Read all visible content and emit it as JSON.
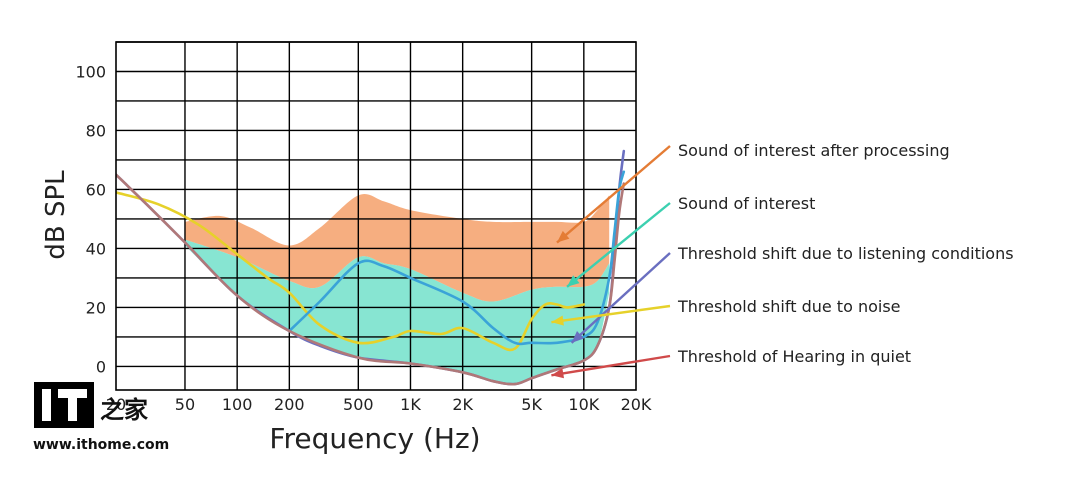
{
  "chart_data": {
    "type": "area",
    "xlabel": "Frequency (Hz)",
    "ylabel": "dB SPL",
    "xscale": "log",
    "xlim": [
      20,
      20000
    ],
    "ylim": [
      -8,
      110
    ],
    "y_ticks": [
      0,
      20,
      40,
      60,
      80,
      100
    ],
    "y_tick_labels": [
      "0",
      "20",
      "40",
      "60",
      "80",
      "100"
    ],
    "x_ticks": [
      20,
      50,
      100,
      200,
      500,
      1000,
      2000,
      5000,
      10000,
      20000
    ],
    "x_tick_labels": [
      "20",
      "50",
      "100",
      "200",
      "500",
      "1K",
      "2K",
      "5K",
      "10K",
      "20K"
    ],
    "grid": true,
    "legend_placement": "right",
    "bands": [
      {
        "name": "Sound of interest after processing",
        "color": "#f4a06a",
        "upper": {
          "x": [
            50,
            80,
            120,
            200,
            300,
            500,
            700,
            1000,
            2000,
            3000,
            5000,
            7000,
            10000,
            12000,
            14000
          ],
          "y": [
            49,
            51,
            47,
            41,
            47,
            58,
            56,
            53,
            50,
            49,
            49,
            49,
            49,
            53,
            58
          ]
        },
        "lower": {
          "x": [
            50,
            100,
            200,
            300,
            500,
            700,
            1000,
            2000,
            3000,
            5000,
            7000,
            10000,
            12000,
            14000
          ],
          "y": [
            43,
            37,
            29,
            27,
            37,
            35,
            33,
            25,
            22,
            26,
            27,
            27,
            29,
            35
          ]
        }
      },
      {
        "name": "Sound of interest",
        "color": "#5fdcc3",
        "upper": {
          "x": [
            50,
            100,
            200,
            300,
            500,
            700,
            1000,
            2000,
            3000,
            5000,
            7000,
            10000,
            12000,
            14000
          ],
          "y": [
            43,
            37,
            29,
            27,
            37,
            35,
            33,
            25,
            22,
            26,
            27,
            27,
            29,
            35
          ]
        },
        "lower": {
          "x": [
            50,
            100,
            200,
            500,
            1000,
            2000,
            3000,
            4000,
            5000,
            7000,
            10000,
            12000,
            14000
          ],
          "y": [
            41,
            24,
            12,
            3,
            1,
            -2,
            -5,
            -6,
            -4,
            -1,
            2,
            7,
            25
          ]
        }
      }
    ],
    "series": [
      {
        "name": "Threshold shift due to listening conditions",
        "color": "#6a6fc0",
        "x": [
          20,
          30,
          50,
          100,
          200,
          300,
          500,
          1000,
          2000,
          3000,
          4000,
          5000,
          7000,
          10000,
          12000,
          14000,
          15000,
          16000,
          17000
        ],
        "y": [
          65,
          55,
          42,
          24,
          12,
          7,
          3,
          1,
          -2,
          -5,
          -6,
          -4,
          -1,
          2,
          7,
          20,
          38,
          60,
          73
        ]
      },
      {
        "name": "Threshold shift due to noise",
        "color": "#e6d12a",
        "x": [
          20,
          35,
          60,
          100,
          150,
          200,
          300,
          500,
          800,
          1000,
          1500,
          2000,
          3000,
          4000,
          5000,
          6000,
          7000,
          8000,
          10000
        ],
        "y": [
          59,
          55,
          48,
          38,
          30,
          25,
          14,
          8,
          10,
          12,
          11,
          13,
          8,
          6,
          16,
          21,
          21,
          20,
          21
        ]
      },
      {
        "name": "Sound of interest",
        "color": "#3aa3d8",
        "x": [
          200,
          300,
          500,
          700,
          1000,
          2000,
          3000,
          4000,
          5000,
          7000,
          10000,
          12000,
          14000,
          15000,
          16000,
          17000
        ],
        "y": [
          12,
          22,
          35,
          34,
          30,
          22,
          13,
          8,
          8,
          8,
          10,
          15,
          30,
          45,
          60,
          66
        ]
      },
      {
        "name": "Threshold of Hearing in quiet",
        "color": "#b07878",
        "x": [
          20,
          30,
          50,
          100,
          200,
          500,
          1000,
          2000,
          3000,
          4000,
          5000,
          7000,
          10000,
          12000,
          14000,
          15000,
          16000,
          17000
        ],
        "y": [
          65,
          55,
          42,
          24,
          12,
          3,
          1,
          -2,
          -5,
          -6,
          -4,
          -1,
          2,
          7,
          20,
          35,
          52,
          62
        ]
      }
    ],
    "annotations": [
      {
        "label": "Sound of interest after processing",
        "color": "#e47c35",
        "target": [
          7000,
          42
        ]
      },
      {
        "label": "Sound of interest",
        "color": "#3cd0b0",
        "target": [
          8000,
          27
        ]
      },
      {
        "label": "Threshold shift due to listening conditions",
        "color": "#6a6fc0",
        "target": [
          8500,
          8
        ]
      },
      {
        "label": "Threshold shift due to noise",
        "color": "#e6d12a",
        "target": [
          6500,
          15
        ]
      },
      {
        "label": "Threshold of Hearing in quiet",
        "color": "#d04a4a",
        "target": [
          6500,
          -3
        ]
      }
    ]
  },
  "watermark": {
    "logo": "IT之家",
    "url": "www.ithome.com"
  }
}
